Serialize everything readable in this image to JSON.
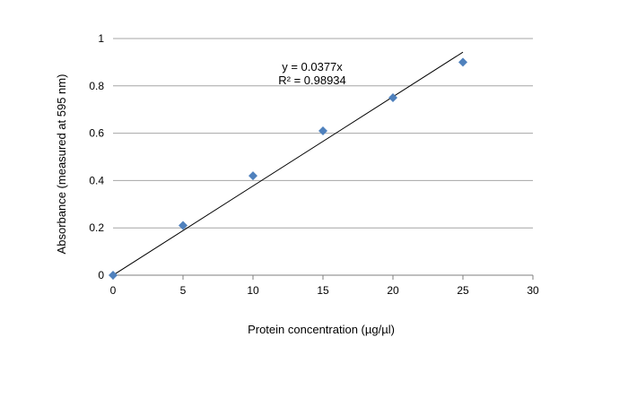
{
  "chart_data": {
    "type": "scatter",
    "xlabel": "Protein concentration (µg/µl)",
    "ylabel": "Absorbance (measured at 595 nm)",
    "xlim": [
      0,
      30
    ],
    "ylim": [
      0,
      1
    ],
    "x_ticks": [
      "0",
      "5",
      "10",
      "15",
      "20",
      "25",
      "30"
    ],
    "y_ticks": [
      "0",
      "0.2",
      "0.4",
      "0.6",
      "0.8",
      "1"
    ],
    "grid": "horizontal",
    "marker_color": "#4f81bd",
    "trendline_color": "#000000",
    "series": [
      {
        "x": [
          0,
          5,
          10,
          15,
          20,
          25
        ],
        "y": [
          0,
          0.21,
          0.42,
          0.61,
          0.75,
          0.9
        ]
      }
    ],
    "trendline": {
      "slope": 0.0377,
      "x_range": [
        0,
        25
      ],
      "equation": "y = 0.0377x",
      "r_squared": "R² = 0.98934"
    }
  }
}
